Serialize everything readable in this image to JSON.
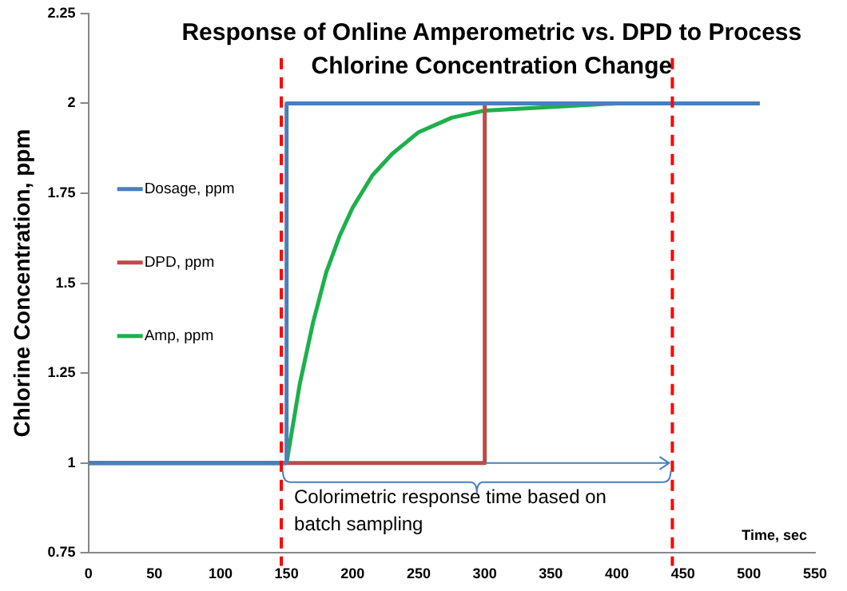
{
  "chart_data": {
    "type": "line",
    "title": "Response of Online Amperometric vs. DPD to Process Chlorine Concentration Change",
    "xlabel": "Time, sec",
    "ylabel": "Chlorine Concentration, ppm",
    "series": [
      {
        "name": "Dosage, ppm",
        "color": "#4a7ebb",
        "x": [
          0,
          150,
          150,
          508
        ],
        "values": [
          1,
          1,
          2,
          2
        ]
      },
      {
        "name": "DPD, ppm",
        "color": "#be4b48",
        "x": [
          0,
          300,
          300,
          508
        ],
        "values": [
          1,
          1,
          2,
          2
        ]
      },
      {
        "name": "Amp, ppm",
        "color": "#1db04b",
        "x": [
          0,
          150,
          160,
          170,
          180,
          190,
          200,
          215,
          230,
          250,
          275,
          300,
          350,
          400,
          450,
          508
        ],
        "values": [
          1,
          1,
          1.22,
          1.39,
          1.53,
          1.63,
          1.71,
          1.8,
          1.86,
          1.92,
          1.96,
          1.98,
          1.99,
          2,
          2,
          2
        ]
      }
    ],
    "xlim": [
      0,
      550
    ],
    "xticks": [
      0,
      50,
      100,
      150,
      200,
      250,
      300,
      350,
      400,
      450,
      500,
      550
    ],
    "ylim": [
      0.75,
      2.25
    ],
    "yticks": [
      0.75,
      1,
      1.25,
      1.5,
      1.75,
      2,
      2.25
    ],
    "ref_lines": [
      {
        "axis": "x",
        "value": 146,
        "color": "#ff0000",
        "line_style": "dashed"
      },
      {
        "axis": "x",
        "value": 442,
        "color": "#ff0000",
        "line_style": "dashed"
      }
    ],
    "annotations": [
      {
        "text": "Colorimetric response time based on batch sampling",
        "x": 146,
        "y": 0.93
      }
    ],
    "grid": false,
    "legend": "left",
    "marker": "none",
    "line_style": "solid"
  }
}
